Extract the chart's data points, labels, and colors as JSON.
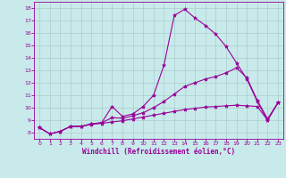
{
  "title": "",
  "xlabel": "Windchill (Refroidissement éolien,°C)",
  "ylabel": "",
  "background_color": "#c8eaea",
  "line_color": "#990099",
  "grid_color": "#aacccc",
  "xlim": [
    -0.5,
    23.5
  ],
  "ylim": [
    7.5,
    18.5
  ],
  "xticks": [
    0,
    1,
    2,
    3,
    4,
    5,
    6,
    7,
    8,
    9,
    10,
    11,
    12,
    13,
    14,
    15,
    16,
    17,
    18,
    19,
    20,
    21,
    22,
    23
  ],
  "yticks": [
    8,
    9,
    10,
    11,
    12,
    13,
    14,
    15,
    16,
    17,
    18
  ],
  "series": [
    {
      "x": [
        0,
        1,
        2,
        3,
        4,
        5,
        6,
        7,
        8,
        9,
        10,
        11,
        12,
        13,
        14,
        15,
        16,
        17,
        18,
        19,
        20,
        21,
        22,
        23
      ],
      "y": [
        8.4,
        7.9,
        8.1,
        8.5,
        8.5,
        8.7,
        8.8,
        10.1,
        9.3,
        9.5,
        10.1,
        11.0,
        13.4,
        17.4,
        17.9,
        17.2,
        16.6,
        15.9,
        14.9,
        13.6,
        12.3,
        10.5,
        9.0,
        10.4
      ]
    },
    {
      "x": [
        0,
        1,
        2,
        3,
        4,
        5,
        6,
        7,
        8,
        9,
        10,
        11,
        12,
        13,
        14,
        15,
        16,
        17,
        18,
        19,
        20,
        21,
        22,
        23
      ],
      "y": [
        8.4,
        7.9,
        8.1,
        8.5,
        8.5,
        8.7,
        8.8,
        9.2,
        9.15,
        9.35,
        9.6,
        10.0,
        10.5,
        11.1,
        11.7,
        12.0,
        12.3,
        12.5,
        12.8,
        13.2,
        12.4,
        10.6,
        9.1,
        10.4
      ]
    },
    {
      "x": [
        0,
        1,
        2,
        3,
        4,
        5,
        6,
        7,
        8,
        9,
        10,
        11,
        12,
        13,
        14,
        15,
        16,
        17,
        18,
        19,
        20,
        21,
        22,
        23
      ],
      "y": [
        8.4,
        7.9,
        8.1,
        8.5,
        8.5,
        8.65,
        8.75,
        8.85,
        8.95,
        9.1,
        9.25,
        9.4,
        9.55,
        9.7,
        9.85,
        9.95,
        10.05,
        10.1,
        10.15,
        10.2,
        10.15,
        10.1,
        9.0,
        10.4
      ]
    }
  ]
}
